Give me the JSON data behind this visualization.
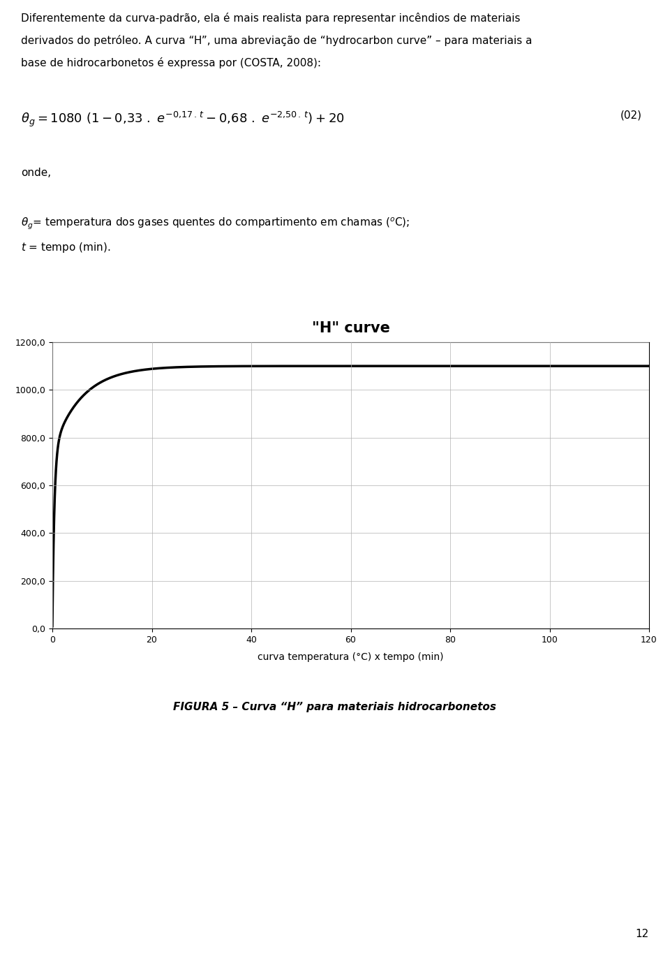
{
  "title": "\"H\" curve",
  "xlabel": "curva temperatura (°C) x tempo (min)",
  "yticks": [
    0.0,
    200.0,
    400.0,
    600.0,
    800.0,
    1000.0,
    1200.0
  ],
  "xticks": [
    0,
    20,
    40,
    60,
    80,
    100,
    120
  ],
  "xlim": [
    0,
    120
  ],
  "ylim": [
    0,
    1200
  ],
  "curve_color": "#000000",
  "curve_linewidth": 2.5,
  "grid_color": "#b0b0b0",
  "grid_linewidth": 0.5,
  "background_color": "#ffffff",
  "title_fontsize": 15,
  "axis_label_fontsize": 10,
  "tick_fontsize": 9,
  "caption": "FIGURA 5 – Curva “H” para materiais hidrocarbonetos",
  "caption_fontsize": 11,
  "text_line1": "Diferentemente da curva-padrão, ela é mais realista para representar incêndios de materiais",
  "text_line2": "derivados do petróleo. A curva “H”, uma abreviação de “hydrocarbon curve” – para materiais a",
  "text_line3": "base de hidrocarbonetos é expressa por (COSTA, 2008):",
  "text_onde": "onde,",
  "text_theta": "θ_g= temperatura dos gases quentes do compartimento em chamas (ºC);",
  "text_t": "t = tempo (min).",
  "text_eq_label": "(02)",
  "page_number": "12"
}
